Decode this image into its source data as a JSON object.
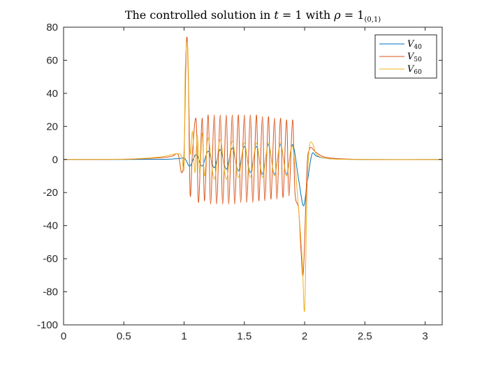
{
  "chart_data": {
    "type": "line",
    "title": {
      "prefix": "The controlled solution in ",
      "var_t": "t",
      "eq1": " = 1 with ",
      "rho": "ρ",
      "eq2": " = 1",
      "subscript": "(0,1)"
    },
    "xlabel": "",
    "ylabel": "",
    "xlim": [
      0,
      3.14159
    ],
    "ylim": [
      -100,
      80
    ],
    "x_ticks": [
      0,
      0.5,
      1,
      1.5,
      2,
      2.5,
      3
    ],
    "x_tick_labels": [
      "0",
      "0.5",
      "1",
      "1.5",
      "2",
      "2.5",
      "3"
    ],
    "y_ticks": [
      80,
      60,
      40,
      20,
      0,
      -20,
      -40,
      -60,
      -80,
      -100
    ],
    "y_tick_labels": [
      "80",
      "60",
      "40",
      "20",
      "0",
      "-20",
      "-40",
      "-60",
      "-80",
      "-100"
    ],
    "grid": false,
    "legend_position": "top-right",
    "series": [
      {
        "name": "V",
        "subscript": "40",
        "color": "#0072BD",
        "x": [
          0,
          0.5,
          0.8,
          0.9,
          0.95,
          1.0,
          1.02,
          1.05,
          1.1,
          1.15,
          1.2,
          1.25,
          1.3,
          1.35,
          1.4,
          1.45,
          1.5,
          1.55,
          1.6,
          1.65,
          1.7,
          1.75,
          1.8,
          1.85,
          1.9,
          1.95,
          1.99,
          2.02,
          2.06,
          2.1,
          2.2,
          2.5,
          3.14159
        ],
        "y": [
          0,
          0,
          0.1,
          0.3,
          0.5,
          0.8,
          -1,
          -4,
          3,
          -4,
          5,
          -5,
          6,
          -6,
          7,
          -7,
          8,
          -8,
          8,
          -9,
          9,
          -9,
          9,
          -9,
          9,
          -12,
          -28,
          -15,
          3,
          2,
          0.5,
          0,
          0
        ]
      },
      {
        "name": "V",
        "subscript": "50",
        "color": "#D95319",
        "x": [
          0,
          0.5,
          0.8,
          0.9,
          0.95,
          0.98,
          1.0,
          1.02,
          1.035,
          1.05,
          1.07,
          1.1,
          1.12,
          1.15,
          1.17,
          1.2,
          1.22,
          1.25,
          1.27,
          1.3,
          1.32,
          1.35,
          1.37,
          1.4,
          1.42,
          1.45,
          1.47,
          1.5,
          1.52,
          1.55,
          1.57,
          1.6,
          1.62,
          1.65,
          1.67,
          1.7,
          1.72,
          1.75,
          1.77,
          1.8,
          1.82,
          1.85,
          1.87,
          1.9,
          1.92,
          1.95,
          1.97,
          1.99,
          2.02,
          2.04,
          2.06,
          2.1,
          2.2,
          2.5,
          3.14159
        ],
        "y": [
          0,
          0.1,
          1,
          2,
          3,
          -8,
          5,
          72,
          50,
          -21,
          5,
          24,
          -26,
          25,
          -25,
          27,
          -27,
          27,
          -27,
          27,
          -27,
          27,
          -27,
          27,
          -27,
          27,
          -26,
          27,
          -26,
          27,
          -26,
          27,
          -25,
          26,
          -25,
          26,
          -24,
          25,
          -24,
          25,
          -23,
          24,
          -22,
          24,
          -20,
          -30,
          -55,
          -68,
          -5,
          6,
          7,
          4,
          1,
          0,
          0
        ]
      },
      {
        "name": "V",
        "subscript": "60",
        "color": "#EDB120",
        "x": [
          0,
          0.5,
          0.8,
          0.9,
          0.95,
          0.98,
          1.0,
          1.01,
          1.03,
          1.05,
          1.07,
          1.09,
          1.11,
          1.13,
          1.15,
          1.17,
          1.2,
          1.25,
          1.3,
          1.35,
          1.4,
          1.45,
          1.5,
          1.55,
          1.6,
          1.65,
          1.7,
          1.75,
          1.8,
          1.85,
          1.9,
          1.95,
          1.98,
          2.0,
          2.02,
          2.04,
          2.07,
          2.1,
          2.2,
          2.5,
          3.14159
        ],
        "y": [
          0,
          0.2,
          1.5,
          3,
          3.5,
          2,
          -4,
          55,
          68,
          5,
          17,
          -8,
          15,
          -9,
          16,
          -10,
          13,
          -12,
          12,
          -12,
          11,
          -11,
          10,
          -11,
          10,
          -11,
          10,
          -10,
          10,
          -10,
          8,
          -30,
          -60,
          -91,
          -20,
          8,
          9,
          3,
          0.5,
          0,
          0
        ]
      }
    ]
  }
}
